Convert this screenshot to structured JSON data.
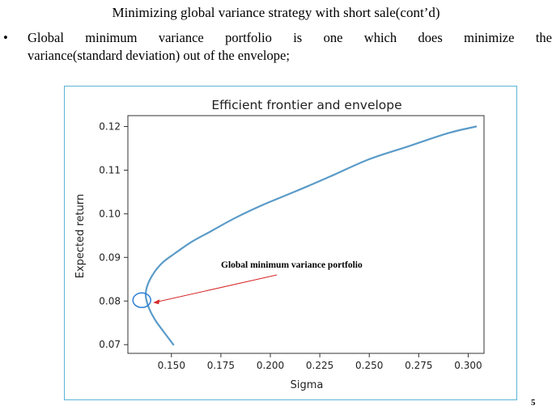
{
  "slide": {
    "title": "Minimizing global variance strategy with short sale(cont’d)",
    "bullet_symbol": "•",
    "bullet_line1": "Global minimum variance portfolio is one which does minimize the",
    "bullet_line2": "variance(standard deviation) out of the envelope;",
    "page_number": "5"
  },
  "chart_data": {
    "type": "line",
    "title": "Efficient frontier and envelope",
    "xlabel": "Sigma",
    "ylabel": "Expected return",
    "xlim": [
      0.128,
      0.308
    ],
    "ylim": [
      0.068,
      0.1225
    ],
    "xticks": [
      0.15,
      0.175,
      0.2,
      0.225,
      0.25,
      0.275,
      0.3
    ],
    "xtick_labels": [
      "0.150",
      "0.175",
      "0.200",
      "0.225",
      "0.250",
      "0.275",
      "0.300"
    ],
    "yticks": [
      0.07,
      0.08,
      0.09,
      0.1,
      0.11,
      0.12
    ],
    "ytick_labels": [
      "0.07",
      "0.08",
      "0.09",
      "0.10",
      "0.11",
      "0.12"
    ],
    "grid": false,
    "line_color": "#5b9bc8",
    "series": [
      {
        "x": [
          0.151,
          0.146,
          0.142,
          0.139,
          0.1375,
          0.137,
          0.1375,
          0.139,
          0.142,
          0.146,
          0.152,
          0.16,
          0.17,
          0.182,
          0.196,
          0.212,
          0.23,
          0.25,
          0.27,
          0.29,
          0.304
        ],
        "y": [
          0.07,
          0.073,
          0.0755,
          0.078,
          0.08,
          0.0815,
          0.083,
          0.0848,
          0.087,
          0.089,
          0.091,
          0.0935,
          0.096,
          0.099,
          0.102,
          0.105,
          0.1085,
          0.1125,
          0.1155,
          0.1185,
          0.12
        ]
      }
    ],
    "annotation": {
      "text": "Global minimum variance portfolio",
      "point_x": 0.1375,
      "point_y": 0.08,
      "arrow_color": "#d62728",
      "marker_color": "#2a7fd4"
    }
  }
}
